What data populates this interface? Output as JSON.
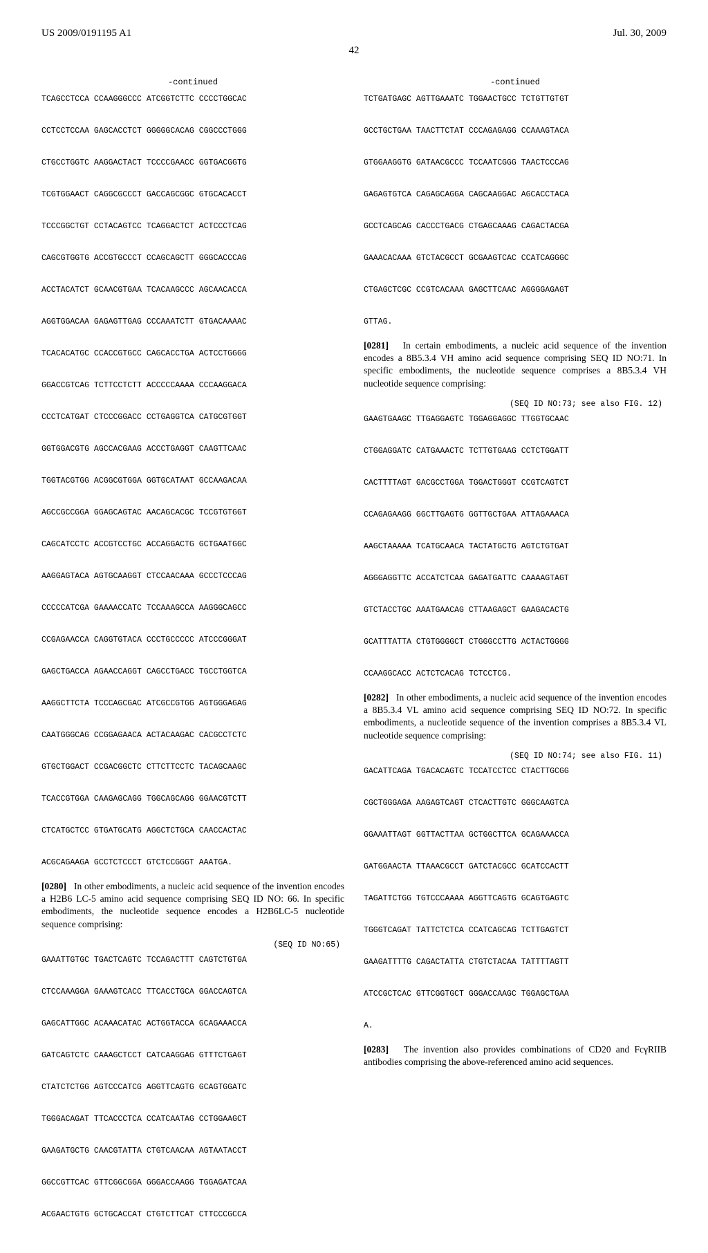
{
  "header": {
    "pub_number": "US 2009/0191195 A1",
    "pub_date": "Jul. 30, 2009",
    "page_number": "42"
  },
  "left_col": {
    "continued_label": "-continued",
    "seq1": "TCAGCCTCCA CCAAGGGCCC ATCGGTCTTC CCCCTGGCAC\n\nCCTCCTCCAA GAGCACCTCT GGGGGCACAG CGGCCCTGGG\n\nCTGCCTGGTC AAGGACTACT TCCCCGAACC GGTGACGGTG\n\nTCGTGGAACT CAGGCGCCCT GACCAGCGGC GTGCACACCT\n\nTCCCGGCTGT CCTACAGTCC TCAGGACTCT ACTCCCTCAG\n\nCAGCGTGGTG ACCGTGCCCT CCAGCAGCTT GGGCACCCAG\n\nACCTACATCT GCAACGTGAA TCACAAGCCC AGCAACACCA\n\nAGGTGGACAA GAGAGTTGAG CCCAAATCTT GTGACAAAAC\n\nTCACACATGC CCACCGTGCC CAGCACCTGA ACTCCTGGGG\n\nGGACCGTCAG TCTTCCTCTT ACCCCCAAAA CCCAAGGACA\n\nCCCTCATGAT CTCCCGGACC CCTGAGGTCA CATGCGTGGT\n\nGGTGGACGTG AGCCACGAAG ACCCTGAGGT CAAGTTCAAC\n\nTGGTACGTGG ACGGCGTGGA GGTGCATAAT GCCAAGACAA\n\nAGCCGCCGGA GGAGCAGTAC AACAGCACGC TCCGTGTGGT\n\nCAGCATCCTC ACCGTCCTGC ACCAGGACTG GCTGAATGGC\n\nAAGGAGTACA AGTGCAAGGT CTCCAACAAA GCCCTCCCAG\n\nCCCCCATCGA GAAAACCATC TCCAAAGCCA AAGGGCAGCC\n\nCCGAGAACCA CAGGTGTACA CCCTGCCCCC ATCCCGGGAT\n\nGAGCTGACCA AGAACCAGGT CAGCCTGACC TGCCTGGTCA\n\nAAGGCTTCTA TCCCAGCGAC ATCGCCGTGG AGTGGGAGAG\n\nCAATGGGCAG CCGGAGAACA ACTACAAGAC CACGCCTCTC\n\nGTGCTGGACT CCGACGGCTC CTTCTTCCTC TACAGCAAGC\n\nTCACCGTGGA CAAGAGCAGG TGGCAGCAGG GGAACGTCTT\n\nCTCATGCTCC GTGATGCATG AGGCTCTGCA CAACCACTAC\n\nACGCAGAAGA GCCTCTCCCT GTCTCCGGGT AAATGA.",
    "para1_num": "[0280]",
    "para1_text": "In other embodiments, a nucleic acid sequence of the invention encodes a H2B6 LC-5 amino acid sequence comprising SEQ ID NO: 66. In specific embodiments, the nucleotide sequence encodes a H2B6LC-5 nucleotide sequence comprising:",
    "seq2_header": "(SEQ ID NO:65)",
    "seq2": "GAAATTGTGC TGACTCAGTC TCCAGACTTT CAGTCTGTGA\n\nCTCCAAAGGA GAAAGTCACC TTCACCTGCA GGACCAGTCA\n\nGAGCATTGGC ACAAACATAC ACTGGTACCA GCAGAAACCA\n\nGATCAGTCTC CAAAGCTCCT CATCAAGGAG GTTTCTGAGT\n\nCTATCTCTGG AGTCCCATCG AGGTTCAGTG GCAGTGGATC\n\nTGGGACAGAT TTCACCCTCA CCATCAATAG CCTGGAAGCT\n\nGAAGATGCTG CAACGTATTA CTGTCAACAA AGTAATACCT\n\nGGCCGTTCAC GTTCGGCGGA GGGACCAAGG TGGAGATCAA\n\nACGAACTGTG GCTGCACCAT CTGTCTTCAT CTTCCCGCCA",
    "typography": {
      "seq_font_family": "Courier New",
      "seq_font_size_pt": 9,
      "body_font_family": "Times New Roman",
      "body_font_size_pt": 10.5
    }
  },
  "right_col": {
    "continued_label": "-continued",
    "seq1": "TCTGATGAGC AGTTGAAATC TGGAACTGCC TCTGTTGTGT\n\nGCCTGCTGAA TAACTTCTAT CCCAGAGAGG CCAAAGTACA\n\nGTGGAAGGTG GATAACGCCC TCCAATCGGG TAACTCCCAG\n\nGAGAGTGTCA CAGAGCAGGA CAGCAAGGAC AGCACCTACA\n\nGCCTCAGCAG CACCCTGACG CTGAGCAAAG CAGACTACGA\n\nGAAACACAAA GTCTACGCCT GCGAAGTCAC CCATCAGGGC\n\nCTGAGCTCGC CCGTCACAAA GAGCTTCAAC AGGGGAGAGT\n\nGTTAG.",
    "para1_num": "[0281]",
    "para1_text": "In certain embodiments, a nucleic acid sequence of the invention encodes a 8B5.3.4 VH amino acid sequence comprising SEQ ID NO:71. In specific embodiments, the nucleotide sequence comprises a 8B5.3.4 VH nucleotide sequence comprising:",
    "seq2_header": "(SEQ ID NO:73; see also FIG. 12)",
    "seq2": "GAAGTGAAGC TTGAGGAGTC TGGAGGAGGC TTGGTGCAAC\n\nCTGGAGGATC CATGAAACTC TCTTGTGAAG CCTCTGGATT\n\nCACTTTTAGT GACGCCTGGA TGGACTGGGT CCGTCAGTCT\n\nCCAGAGAAGG GGCTTGAGTG GGTTGCTGAA ATTAGAAACA\n\nAAGCTAAAAA TCATGCAACA TACTATGCTG AGTCTGTGAT\n\nAGGGAGGTTC ACCATCTCAA GAGATGATTC CAAAAGTAGT\n\nGTCTACCTGC AAATGAACAG CTTAAGAGCT GAAGACACTG\n\nGCATTTATTA CTGTGGGGCT CTGGGCCTTG ACTACTGGGG\n\nCCAAGGCACC ACTCTCACAG TCTCCTCG.",
    "para2_num": "[0282]",
    "para2_text": "In other embodiments, a nucleic acid sequence of the invention encodes a 8B5.3.4 VL amino acid sequence comprising SEQ ID NO:72. In specific embodiments, a nucleotide sequence of the invention comprises a 8B5.3.4 VL nucleotide sequence comprising:",
    "seq3_header": "(SEQ ID NO:74; see also FIG. 11)",
    "seq3": "GACATTCAGA TGACACAGTC TCCATCCTCC CTACTTGCGG\n\nCGCTGGGAGA AAGAGTCAGT CTCACTTGTC GGGCAAGTCA\n\nGGAAATTAGT GGTTACTTAA GCTGGCTTCA GCAGAAACCA\n\nGATGGAACTA TTAAACGCCT GATCTACGCC GCATCCACTT\n\nTAGATTCTGG TGTCCCAAAA AGGTTCAGTG GCAGTGAGTC\n\nTGGGTCAGAT TATTCTCTCA CCATCAGCAG TCTTGAGTCT\n\nGAAGATTTTG CAGACTATTA CTGTCTACAA TATTTTAGTT\n\nATCCGCTCAC GTTCGGTGCT GGGACCAAGC TGGAGCTGAA\n\nA.",
    "para3_num": "[0283]",
    "para3_text": "The invention also provides combinations of CD20 and FcγRIIB antibodies comprising the above-referenced amino acid sequences."
  },
  "colors": {
    "background": "#ffffff",
    "text": "#000000"
  }
}
